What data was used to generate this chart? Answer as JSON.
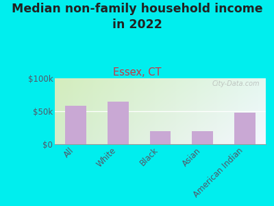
{
  "title": "Median non-family household income\nin 2022",
  "subtitle": "Essex, CT",
  "categories": [
    "All",
    "White",
    "Black",
    "Asian",
    "American Indian"
  ],
  "values": [
    58000,
    65000,
    20000,
    20000,
    48000
  ],
  "bar_color": "#c9a8d4",
  "title_fontsize": 12.5,
  "subtitle_fontsize": 10.5,
  "subtitle_color": "#cc3344",
  "title_color": "#222222",
  "background_outer": "#00eeee",
  "ylim": [
    0,
    100000
  ],
  "yticks": [
    0,
    50000,
    100000
  ],
  "ytick_labels": [
    "$0",
    "$50k",
    "$100k"
  ],
  "watermark": "City-Data.com",
  "tick_label_color": "#555566"
}
